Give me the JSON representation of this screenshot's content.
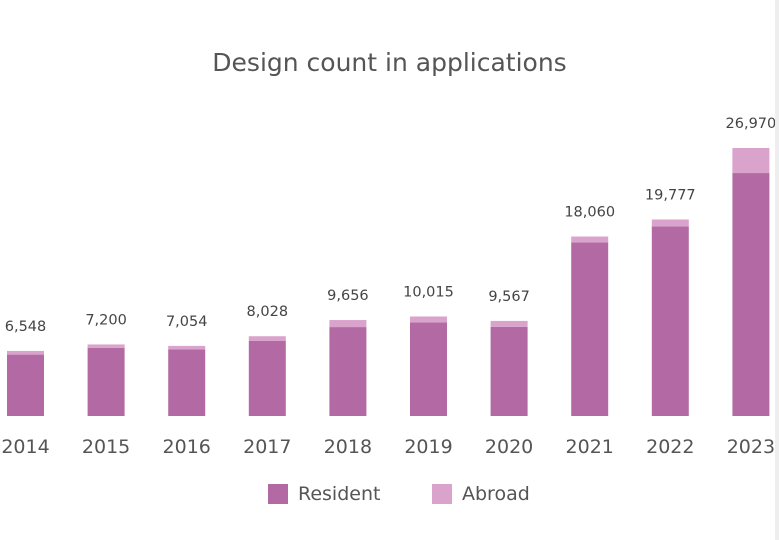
{
  "chart_data": {
    "type": "bar",
    "stacked": true,
    "title": "Design count in applications",
    "categories": [
      "2014",
      "2015",
      "2016",
      "2017",
      "2018",
      "2019",
      "2020",
      "2021",
      "2022",
      "2023"
    ],
    "totals": [
      6548,
      7200,
      7054,
      8028,
      9656,
      10015,
      9567,
      18060,
      19777,
      26970
    ],
    "total_labels": [
      "6,548",
      "7,200",
      "7,054",
      "8,028",
      "9,656",
      "10,015",
      "9,567",
      "18,060",
      "19,777",
      "26,970"
    ],
    "series": [
      {
        "name": "Resident",
        "color": "#b36aa4",
        "values": [
          6180,
          6850,
          6700,
          7550,
          8950,
          9420,
          8980,
          17480,
          19090,
          24450
        ]
      },
      {
        "name": "Abroad",
        "color": "#d9a3cc",
        "values": [
          368,
          350,
          354,
          478,
          706,
          595,
          587,
          580,
          687,
          2520
        ]
      }
    ],
    "ylim": [
      0,
      28000
    ],
    "grid": false,
    "legend_position": "bottom"
  }
}
